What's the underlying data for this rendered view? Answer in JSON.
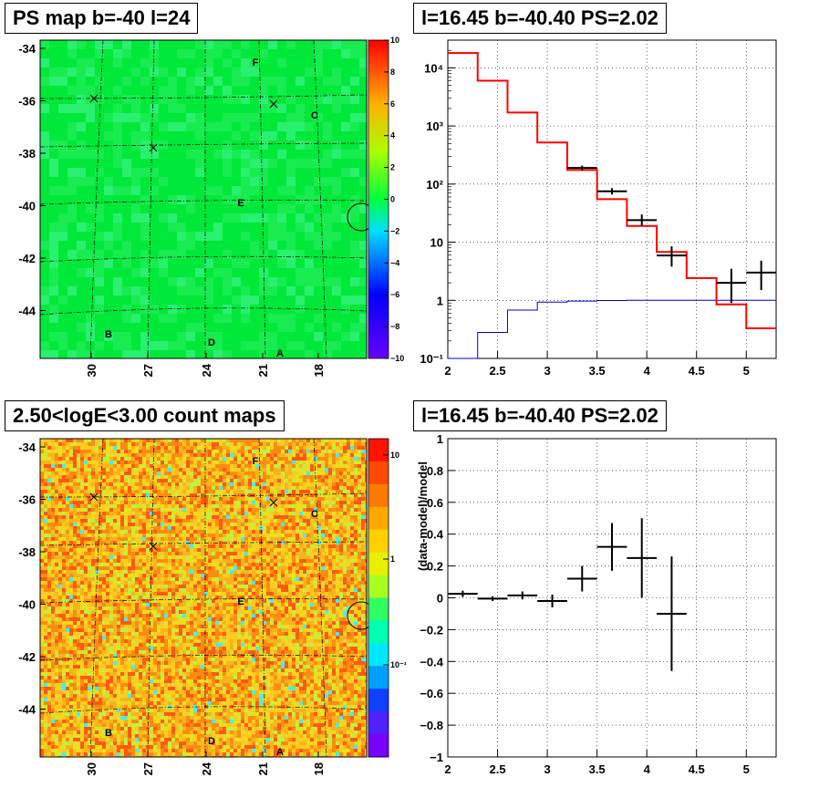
{
  "panels": {
    "ps_map": {
      "title": "PS map b=-40 l=24"
    },
    "count_map": {
      "title": "2.50<logE<3.00 count maps"
    },
    "spectrum": {
      "title": "l=16.45 b=-40.40 PS=2.02"
    },
    "residual": {
      "title": "l=16.45 b=-40.40 PS=2.02"
    }
  },
  "chart_data": [
    {
      "type": "heatmap",
      "name": "ps_map",
      "title": "PS map b=-40 l=24",
      "x_ticks": [
        "30",
        "27",
        "24",
        "21",
        "18"
      ],
      "y_ticks": [
        "-34",
        "-36",
        "-38",
        "-40",
        "-42",
        "-44"
      ],
      "colorbar": {
        "ticks": [
          "10",
          "8",
          "6",
          "4",
          "2",
          "0",
          "−2",
          "−4",
          "−6",
          "−8",
          "−10"
        ],
        "range": [
          -10,
          10
        ]
      },
      "dominant_value": 0,
      "source_labels": [
        "F",
        "C",
        "E",
        "B",
        "D",
        "A"
      ]
    },
    {
      "type": "heatmap",
      "name": "count_map",
      "title": "2.50<logE<3.00 count maps",
      "x_ticks": [
        "30",
        "27",
        "24",
        "21",
        "18"
      ],
      "y_ticks": [
        "-34",
        "-36",
        "-38",
        "-40",
        "-42",
        "-44"
      ],
      "colorbar": {
        "ticks": [
          "10",
          "1",
          "10⁻¹"
        ],
        "scale": "log"
      },
      "source_labels": [
        "F",
        "C",
        "E",
        "B",
        "D",
        "A"
      ]
    },
    {
      "type": "line",
      "name": "spectrum",
      "title": "l=16.45 b=-40.40 PS=2.02",
      "xlim": [
        2,
        5.3
      ],
      "ylim": [
        0.1,
        30000
      ],
      "yscale": "log",
      "grid": true,
      "x_ticks": [
        "2",
        "2.5",
        "3",
        "3.5",
        "4",
        "4.5",
        "5"
      ],
      "y_ticks": [
        "10⁻¹",
        "1",
        "10",
        "10²",
        "10³",
        "10⁴"
      ],
      "bin_edges": [
        2.0,
        2.3,
        2.6,
        2.9,
        3.2,
        3.5,
        3.8,
        4.1,
        4.4,
        4.7,
        5.0,
        5.3
      ],
      "series": [
        {
          "values": [
            18000,
            6000,
            1700,
            520,
            175,
            55,
            19,
            6.8,
            2.4,
            0.85,
            0.33
          ],
          "color": "#ff0000"
        },
        {
          "values": [
            0.1,
            0.28,
            0.68,
            0.93,
            0.97,
            0.99,
            1,
            1,
            1,
            1,
            1
          ],
          "color": "#0000cc"
        },
        {
          "type": "errorbar",
          "color": "#000000",
          "points": [
            {
              "x": 3.35,
              "y": 190,
              "lo": 172,
              "hi": 208
            },
            {
              "x": 3.65,
              "y": 75,
              "lo": 66,
              "hi": 85
            },
            {
              "x": 3.95,
              "y": 24,
              "lo": 19,
              "hi": 30
            },
            {
              "x": 4.25,
              "y": 5.9,
              "lo": 3.8,
              "hi": 8.5
            },
            {
              "x": 4.85,
              "y": 2.0,
              "lo": 0.9,
              "hi": 3.5
            },
            {
              "x": 5.15,
              "y": 3.0,
              "lo": 1.5,
              "hi": 4.8
            }
          ]
        }
      ]
    },
    {
      "type": "scatter",
      "name": "residual",
      "title": "l=16.45 b=-40.40 PS=2.02",
      "ylabel": "(data-model)/model",
      "xlim": [
        2,
        5.3
      ],
      "ylim": [
        -1,
        1
      ],
      "grid": true,
      "x_ticks": [
        "2",
        "2.5",
        "3",
        "3.5",
        "4",
        "4.5",
        "5"
      ],
      "y_ticks": [
        "1",
        "0.8",
        "0.6",
        "0.4",
        "0.2",
        "0",
        "−0.2",
        "−0.4",
        "−0.6",
        "−0.8",
        "−1"
      ],
      "points": [
        {
          "x": 2.15,
          "y": 0.025,
          "err": 0.02
        },
        {
          "x": 2.45,
          "y": -0.005,
          "err": 0.015
        },
        {
          "x": 2.75,
          "y": 0.015,
          "err": 0.025
        },
        {
          "x": 3.05,
          "y": -0.02,
          "err": 0.04
        },
        {
          "x": 3.35,
          "y": 0.12,
          "err": 0.08
        },
        {
          "x": 3.65,
          "y": 0.32,
          "err": 0.15
        },
        {
          "x": 3.95,
          "y": 0.25,
          "err": 0.25
        },
        {
          "x": 4.25,
          "y": -0.1,
          "err": 0.36
        }
      ],
      "xerr": 0.15
    }
  ]
}
